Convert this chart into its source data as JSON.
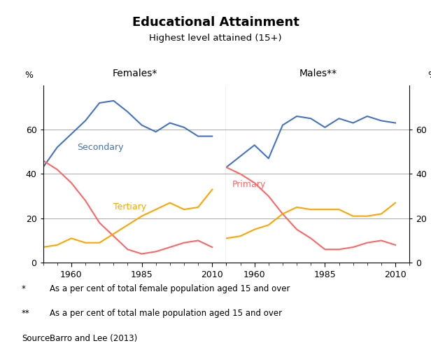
{
  "title": "Educational Attainment",
  "subtitle": "Highest level attained (15+)",
  "left_panel_title": "Females*",
  "right_panel_title": "Males**",
  "footnote1_star": "*",
  "footnote1_text": "As a per cent of total female population aged 15 and over",
  "footnote2_star": "**",
  "footnote2_text": "As a per cent of total male population aged 15 and over",
  "source_label": "Source:",
  "source_text": "Barro and Lee (2013)",
  "ylabel_left": "%",
  "ylabel_right": "%",
  "yticks": [
    0,
    20,
    40,
    60
  ],
  "ylim": [
    0,
    80
  ],
  "years": [
    1950,
    1955,
    1960,
    1965,
    1970,
    1975,
    1980,
    1985,
    1990,
    1995,
    2000,
    2005,
    2010
  ],
  "female_secondary": [
    43,
    52,
    58,
    64,
    72,
    73,
    68,
    62,
    59,
    63,
    61,
    57,
    57
  ],
  "female_primary": [
    46,
    42,
    36,
    28,
    18,
    12,
    6,
    4,
    5,
    7,
    9,
    10,
    7
  ],
  "female_tertiary": [
    7,
    8,
    11,
    9,
    9,
    13,
    17,
    21,
    24,
    27,
    24,
    25,
    33
  ],
  "male_secondary": [
    43,
    48,
    53,
    47,
    62,
    66,
    65,
    61,
    65,
    63,
    66,
    64,
    63
  ],
  "male_primary": [
    43,
    40,
    36,
    30,
    22,
    15,
    11,
    6,
    6,
    7,
    9,
    10,
    8
  ],
  "male_tertiary": [
    11,
    12,
    15,
    17,
    22,
    25,
    24,
    24,
    24,
    21,
    21,
    22,
    27
  ],
  "color_secondary": "#4472C4",
  "color_primary": "#FF6666",
  "color_tertiary": "#FFA500",
  "xtick_labels": [
    "1960",
    "1985",
    "2010"
  ],
  "xtick_positions": [
    1960,
    1985,
    2010
  ],
  "background_color": "#FFFFFF",
  "grid_color": "#AAAAAA"
}
